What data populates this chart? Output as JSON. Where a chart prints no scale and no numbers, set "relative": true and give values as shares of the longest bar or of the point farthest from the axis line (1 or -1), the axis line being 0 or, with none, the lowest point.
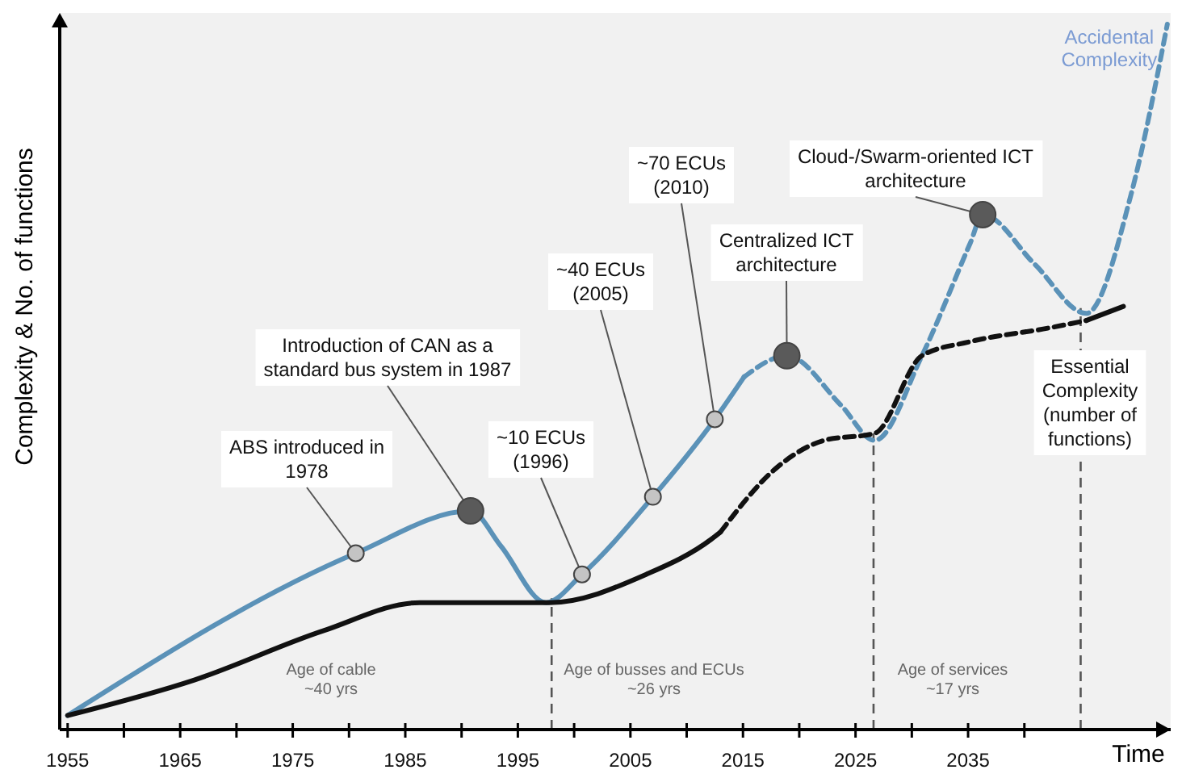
{
  "chart_data": {
    "type": "line",
    "relative": true,
    "xlabel": "Time",
    "ylabel": "Complexity & No. of functions",
    "xlim": [
      1954.3,
      2053
    ],
    "xticks": [
      1955,
      {
        "value": 1960,
        "label": null
      },
      1965,
      {
        "value": 1970,
        "label": null
      },
      1975,
      {
        "value": 1980,
        "label": null
      },
      1985,
      {
        "value": 1990,
        "label": null
      },
      1995,
      {
        "value": 2000,
        "label": null
      },
      2005,
      {
        "value": 2010,
        "label": null
      },
      2015,
      {
        "value": 2020,
        "label": null
      },
      2025,
      {
        "value": 2030,
        "label": null
      },
      2035,
      {
        "value": 2040,
        "label": null
      }
    ],
    "grid": false,
    "series": [
      {
        "color": "#5b92b8",
        "line_style": "solid",
        "x": [
          1955,
          1980.6,
          1990.8,
          1993.5,
          1997.5,
          2000.7,
          2007.0,
          2012.5,
          2015.1
        ],
        "values": [
          0.02,
          0.25,
          0.31,
          0.26,
          0.18,
          0.22,
          0.33,
          0.44,
          0.5
        ]
      },
      {
        "name": "Accidental Complexity",
        "color": "#5b92b8",
        "line_style": "dashed",
        "x": [
          2015.1,
          2018.9,
          2023.7,
          2026.7,
          2030.9,
          2035.2,
          2036.3,
          2040.9,
          2045.5,
          2049.5,
          2052.7
        ],
        "values": [
          0.5,
          0.53,
          0.46,
          0.41,
          0.53,
          0.69,
          0.73,
          0.66,
          0.59,
          0.76,
          1.0
        ]
      },
      {
        "color": "#111111",
        "line_style": "solid",
        "x": [
          1955,
          1966.2,
          1977.7,
          1986.3,
          1992.1,
          1997.8,
          2006.4,
          2012.2,
          2013
        ],
        "values": [
          0.02,
          0.07,
          0.14,
          0.18,
          0.18,
          0.18,
          0.22,
          0.27,
          0.28
        ]
      },
      {
        "color": "#111111",
        "line_style": "dashed",
        "x": [
          2013,
          2017.9,
          2022.2,
          2026.7,
          2030.9,
          2035.2,
          2042.4,
          2045.5
        ],
        "values": [
          0.28,
          0.37,
          0.41,
          0.42,
          0.53,
          0.55,
          0.57,
          0.58
        ]
      },
      {
        "color": "#111111",
        "line_style": "solid",
        "x": [
          2045.5,
          2048.8
        ],
        "values": [
          0.58,
          0.6
        ]
      }
    ],
    "ref_lines": [
      {
        "axis": "x",
        "value": 1998,
        "color": "#555555",
        "line_style": "dashed"
      },
      {
        "axis": "x",
        "value": 2026.6,
        "color": "#555555",
        "line_style": "dashed"
      },
      {
        "axis": "x",
        "value": 2045,
        "color": "#555555",
        "line_style": "dashed"
      }
    ],
    "annotations": [
      {
        "text": "ABS introduced in 1978",
        "x": 1980.6,
        "y": 0.25
      },
      {
        "text": "Introduction of CAN as a standard bus system in 1987",
        "x": 1990.8,
        "y": 0.31
      },
      {
        "text": "~10 ECUs (1996)",
        "x": 2000.7,
        "y": 0.22
      },
      {
        "text": "~40 ECUs (2005)",
        "x": 2007.0,
        "y": 0.33
      },
      {
        "text": "~70 ECUs (2010)",
        "x": 2012.5,
        "y": 0.44
      },
      {
        "text": "Centralized ICT architecture",
        "x": 2018.9,
        "y": 0.53
      },
      {
        "text": "Cloud-/Swarm-oriented ICT architecture",
        "x": 2036.3,
        "y": 0.73
      },
      "Essential Complexity (number of functions)",
      "Age of cable ~40 yrs",
      "Age of busses and ECUs ~26 yrs",
      "Age of services ~17 yrs"
    ]
  }
}
